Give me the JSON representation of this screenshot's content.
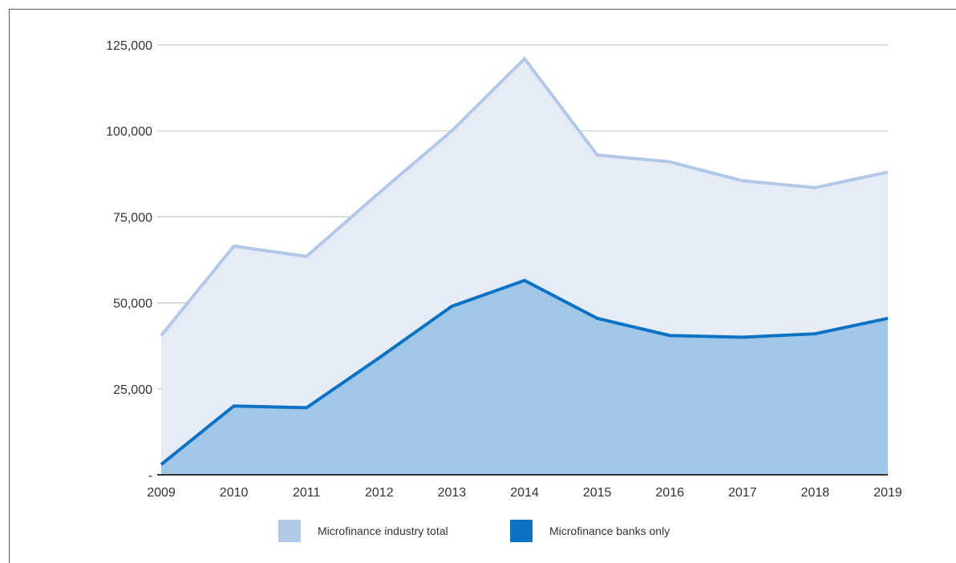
{
  "chart_data": {
    "type": "area",
    "title": "",
    "xlabel": "",
    "ylabel": "",
    "x": [
      "2009",
      "2010",
      "2011",
      "2012",
      "2013",
      "2014",
      "2015",
      "2016",
      "2017",
      "2018",
      "2019"
    ],
    "ylim": [
      0,
      125000
    ],
    "yticks": [
      0,
      25000,
      50000,
      75000,
      100000,
      125000
    ],
    "ytick_labels": [
      "-",
      "25,000",
      "50,000",
      "75,000",
      "100,000",
      "125,000"
    ],
    "grid": true,
    "legend_position": "bottom",
    "series": [
      {
        "name": "Microfinance industry total",
        "values": [
          40500,
          66500,
          63500,
          82000,
          100000,
          121000,
          93000,
          91000,
          85500,
          83500,
          88000
        ],
        "line_color": "#b3c8e8",
        "fill_color": "#e5ecf6",
        "legend_color": "#b3c8e8"
      },
      {
        "name": "Microfinance banks only",
        "values": [
          3000,
          20000,
          19500,
          34000,
          49000,
          56500,
          45500,
          40500,
          40000,
          41000,
          45500
        ],
        "line_color": "#0b72c4",
        "fill_color": "#a1c7e8",
        "legend_color": "#0b72c4"
      }
    ]
  }
}
